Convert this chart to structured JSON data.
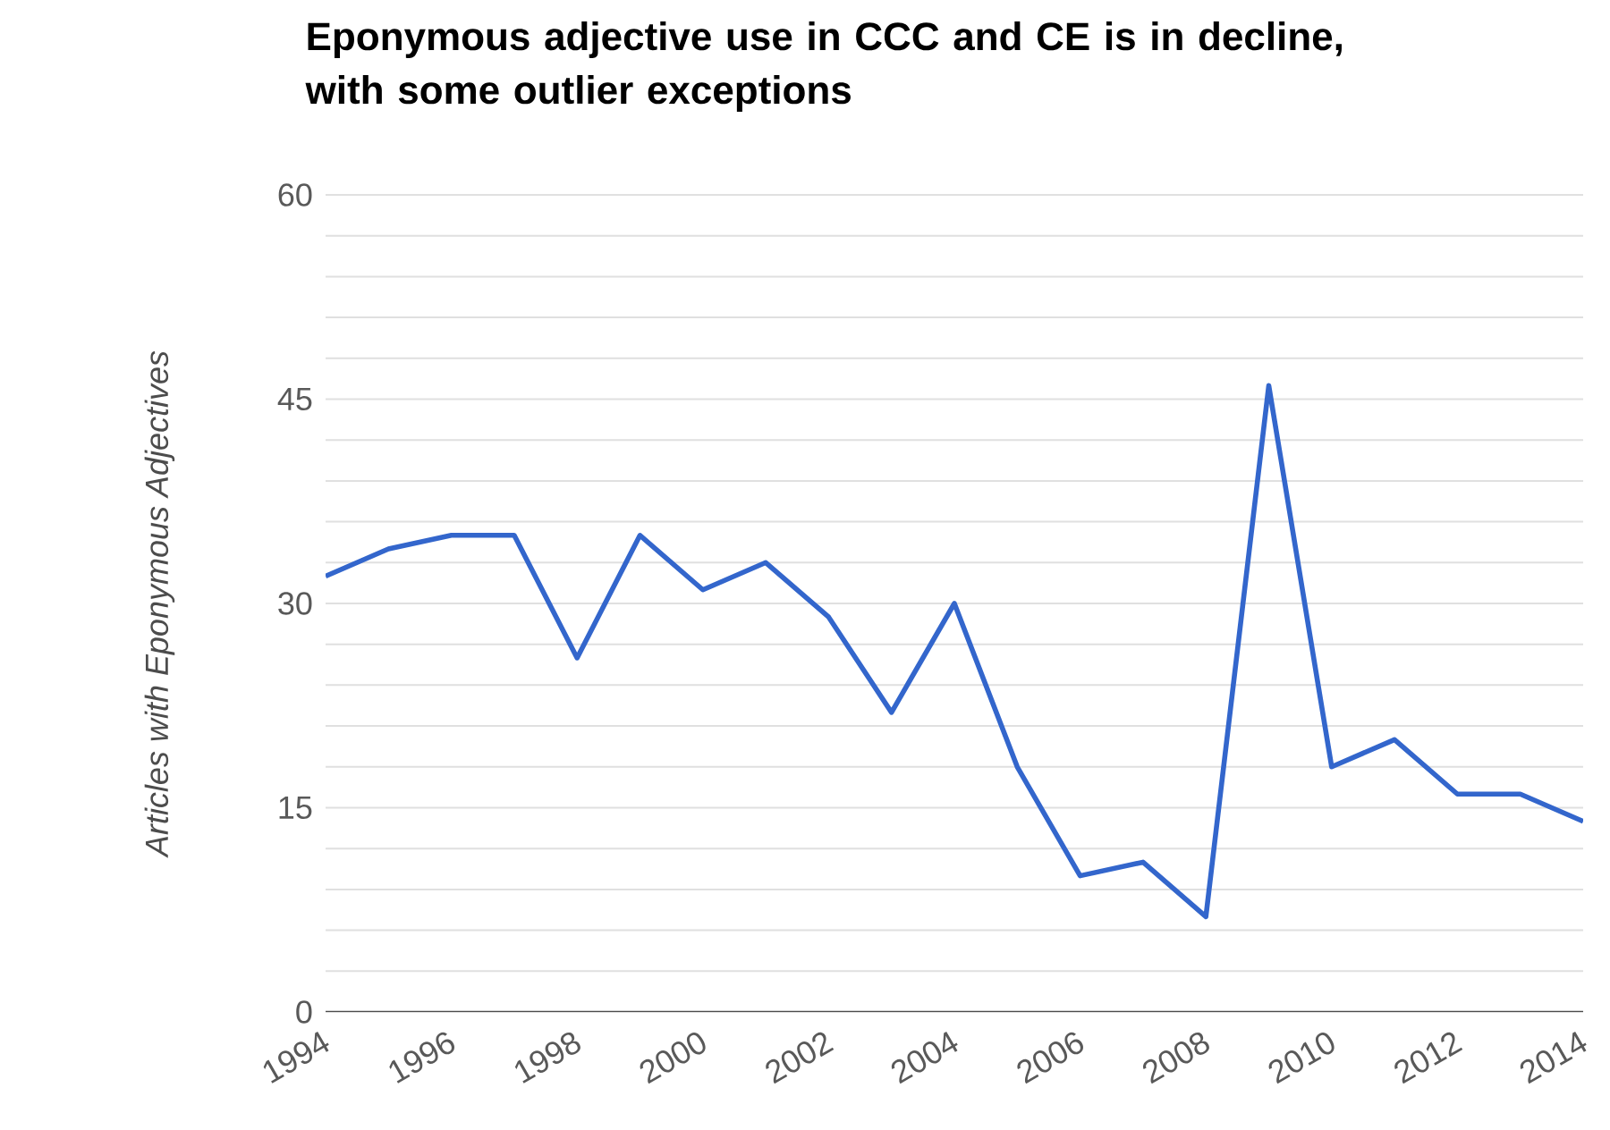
{
  "chart_data": {
    "type": "line",
    "title": "Eponymous adjective use in CCC and CE is in decline, with some outlier exceptions",
    "ylabel": "Articles with Eponymous Adjectives",
    "x": [
      1994,
      1995,
      1996,
      1997,
      1998,
      1999,
      2000,
      2001,
      2002,
      2003,
      2004,
      2005,
      2006,
      2007,
      2008,
      2009,
      2010,
      2011,
      2012,
      2013,
      2014
    ],
    "series": [
      {
        "color": "#3366cc",
        "values": [
          32,
          34,
          35,
          35,
          26,
          35,
          31,
          33,
          29,
          22,
          30,
          18,
          10,
          11,
          7,
          46,
          18,
          20,
          16,
          16,
          14
        ]
      }
    ],
    "xlim": [
      1994,
      2014
    ],
    "xticks": [
      1994,
      1996,
      1998,
      2000,
      2002,
      2004,
      2006,
      2008,
      2010,
      2012,
      2014
    ],
    "ylim": [
      0,
      60
    ],
    "yticks": [
      0,
      {
        "value": 3,
        "label": null
      },
      {
        "value": 6,
        "label": null
      },
      {
        "value": 9,
        "label": null
      },
      {
        "value": 12,
        "label": null
      },
      15,
      {
        "value": 18,
        "label": null
      },
      {
        "value": 21,
        "label": null
      },
      {
        "value": 24,
        "label": null
      },
      {
        "value": 27,
        "label": null
      },
      30,
      {
        "value": 33,
        "label": null
      },
      {
        "value": 36,
        "label": null
      },
      {
        "value": 39,
        "label": null
      },
      {
        "value": 42,
        "label": null
      },
      45,
      {
        "value": 48,
        "label": null
      },
      {
        "value": 51,
        "label": null
      },
      {
        "value": 54,
        "label": null
      },
      {
        "value": 57,
        "label": null
      },
      60
    ],
    "grid": "y",
    "marker": "none",
    "line_style": "solid"
  }
}
